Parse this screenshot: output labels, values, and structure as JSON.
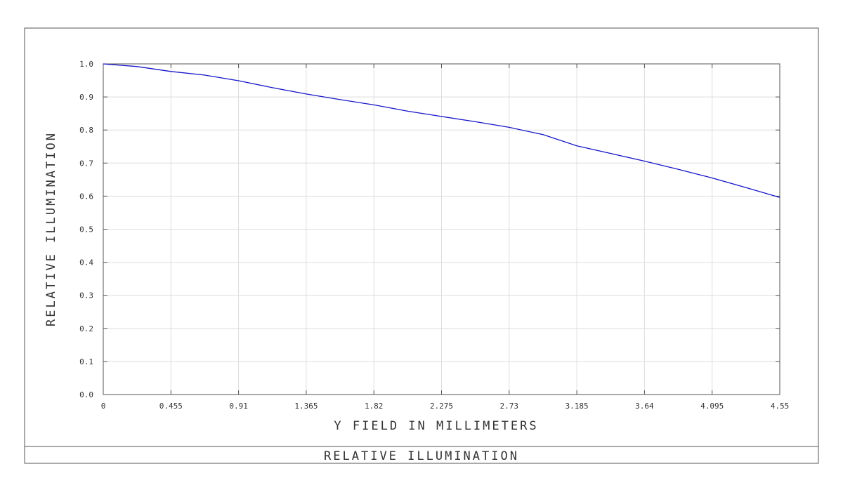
{
  "chart_data": {
    "type": "line",
    "title": "RELATIVE ILLUMINATION",
    "xlabel": "Y FIELD IN MILLIMETERS",
    "ylabel": "RELATIVE ILLUMINATION",
    "xlim": [
      0,
      4.55
    ],
    "ylim": [
      0.0,
      1.0
    ],
    "grid": true,
    "x_ticks": [
      "0",
      "0.455",
      "0.91",
      "1.365",
      "1.82",
      "2.275",
      "2.73",
      "3.185",
      "3.64",
      "4.095",
      "4.55"
    ],
    "y_ticks": [
      "0.0",
      "0.1",
      "0.2",
      "0.3",
      "0.4",
      "0.5",
      "0.6",
      "0.7",
      "0.8",
      "0.9",
      "1.0"
    ],
    "series": [
      {
        "color": "#1515c8",
        "x": [
          0,
          0.228,
          0.455,
          0.683,
          0.91,
          1.138,
          1.365,
          1.593,
          1.82,
          2.048,
          2.275,
          2.503,
          2.73,
          2.958,
          3.185,
          3.413,
          3.64,
          3.868,
          4.095,
          4.323,
          4.55
        ],
        "y": [
          1.0,
          0.992,
          0.977,
          0.966,
          0.949,
          0.928,
          0.909,
          0.892,
          0.876,
          0.857,
          0.841,
          0.825,
          0.808,
          0.786,
          0.752,
          0.729,
          0.706,
          0.681,
          0.655,
          0.626,
          0.596
        ]
      }
    ]
  }
}
